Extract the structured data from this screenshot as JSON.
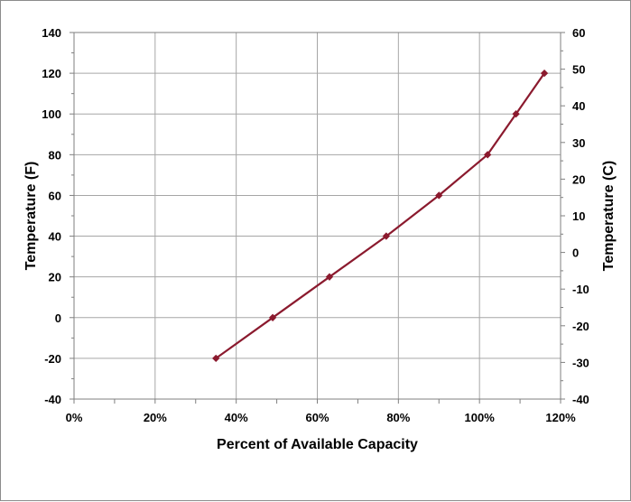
{
  "chart_data": {
    "type": "line",
    "title": "",
    "xlabel": "Percent of Available Capacity",
    "ylabel": "Temperature (F)",
    "y2label": "Temperature  (C)",
    "xlim": [
      0,
      120
    ],
    "ylim": [
      -40,
      140
    ],
    "y2lim": [
      -40,
      60
    ],
    "x_ticks": [
      "0%",
      "20%",
      "40%",
      "60%",
      "80%",
      "100%",
      "120%"
    ],
    "y_ticks": [
      "-40",
      "-20",
      "0",
      "20",
      "40",
      "60",
      "80",
      "100",
      "120",
      "140"
    ],
    "y2_ticks": [
      "-40",
      "-30",
      "-20",
      "-10",
      "0",
      "10",
      "20",
      "30",
      "40",
      "50",
      "60"
    ],
    "grid": true,
    "legend": "none",
    "series": [
      {
        "color": "#8b1a2e",
        "marker": "diamond",
        "x": [
          35,
          49,
          63,
          77,
          90,
          102,
          109,
          116
        ],
        "y": [
          -20,
          0,
          20,
          40,
          60,
          80,
          100,
          120
        ]
      }
    ]
  }
}
